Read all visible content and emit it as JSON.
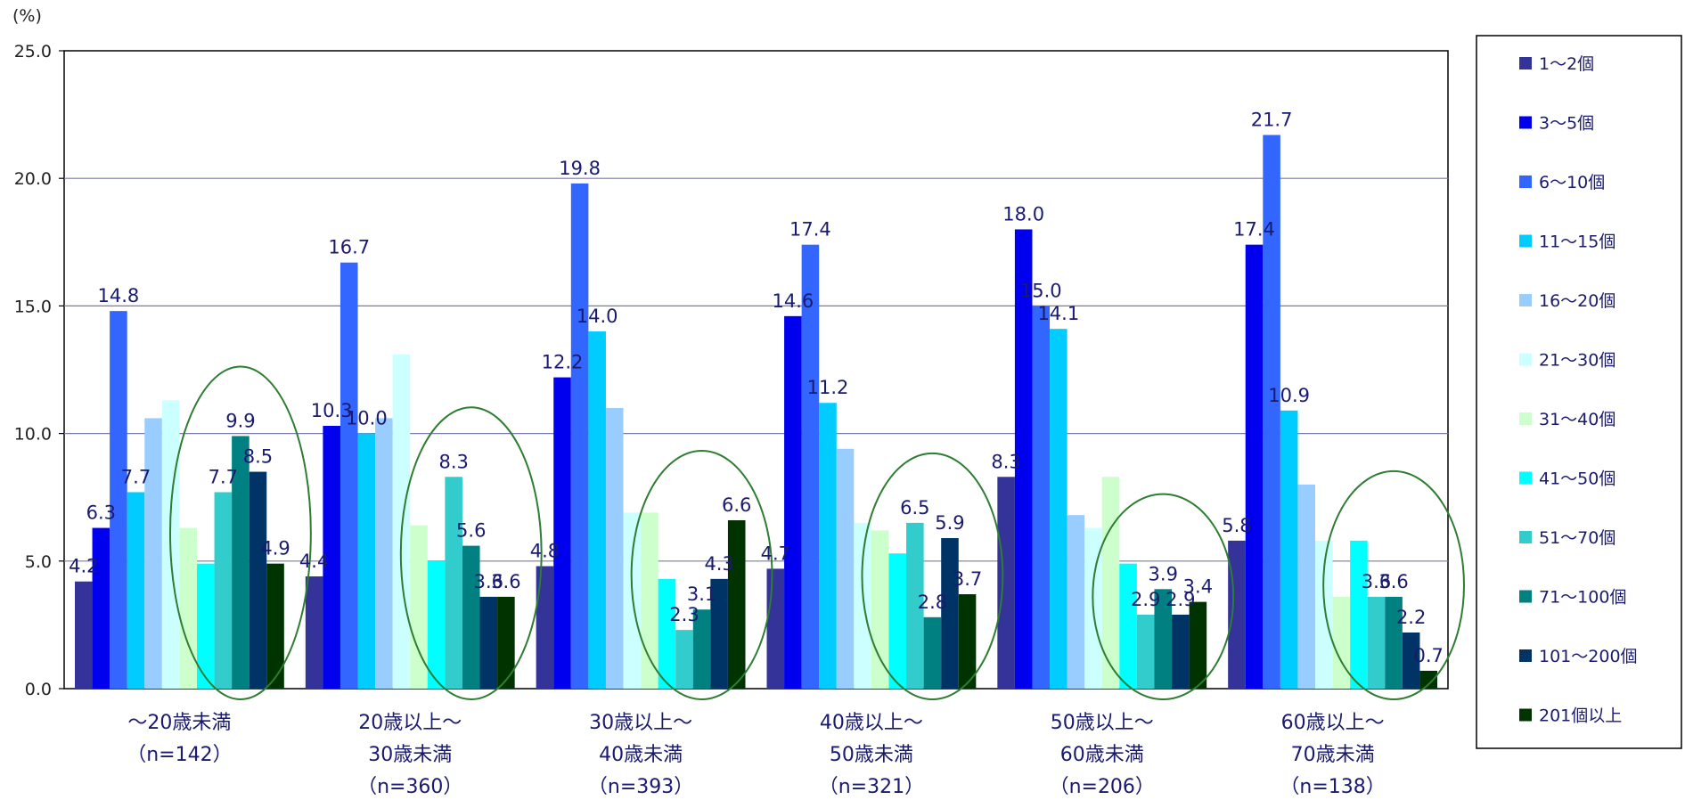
{
  "chart_data": {
    "type": "bar",
    "unit_label": "(%)",
    "ylim": [
      0,
      25
    ],
    "y_ticks": [
      "0.0",
      "5.0",
      "10.0",
      "15.0",
      "20.0",
      "25.0"
    ],
    "grid": true,
    "legend_position": "right",
    "categories": [
      [
        "～20歳未満",
        "（n=142）"
      ],
      [
        "20歳以上～",
        "30歳未満",
        "（n=360）"
      ],
      [
        "30歳以上～",
        "40歳未満",
        "（n=393）"
      ],
      [
        "40歳以上～",
        "50歳未満",
        "（n=321）"
      ],
      [
        "50歳以上～",
        "60歳未満",
        "（n=206）"
      ],
      [
        "60歳以上～",
        "70歳未満",
        "（n=138）"
      ]
    ],
    "series": [
      {
        "name": "1～2個",
        "color": "#333399",
        "values": [
          4.2,
          4.4,
          4.8,
          4.7,
          8.3,
          5.8
        ]
      },
      {
        "name": "3～5個",
        "color": "#0000ee",
        "values": [
          6.3,
          10.3,
          12.2,
          14.6,
          18.0,
          17.4
        ]
      },
      {
        "name": "6～10個",
        "color": "#3366ff",
        "values": [
          14.8,
          16.7,
          19.8,
          17.4,
          15.0,
          21.7
        ]
      },
      {
        "name": "11～15個",
        "color": "#00ccff",
        "values": [
          7.7,
          10.0,
          14.0,
          11.2,
          14.1,
          10.9
        ]
      },
      {
        "name": "16～20個",
        "color": "#99ccff",
        "values": [
          10.6,
          10.6,
          11.0,
          9.4,
          6.8,
          8.0
        ]
      },
      {
        "name": "21～30個",
        "color": "#ccffff",
        "values": [
          11.3,
          13.1,
          6.9,
          6.5,
          6.3,
          5.8
        ]
      },
      {
        "name": "31～40個",
        "color": "#ccffcc",
        "values": [
          6.3,
          6.4,
          6.9,
          6.2,
          8.3,
          3.6
        ]
      },
      {
        "name": "41～50個",
        "color": "#00ffff",
        "values": [
          4.9,
          5.0,
          4.3,
          5.3,
          4.9,
          5.8
        ]
      },
      {
        "name": "51～70個",
        "color": "#33cccc",
        "values": [
          7.7,
          8.3,
          2.3,
          6.5,
          2.9,
          3.6
        ]
      },
      {
        "name": "71～100個",
        "color": "#008080",
        "values": [
          9.9,
          5.6,
          3.1,
          2.8,
          3.9,
          3.6
        ]
      },
      {
        "name": "101～200個",
        "color": "#003366",
        "values": [
          8.5,
          3.6,
          4.3,
          5.9,
          2.9,
          2.2
        ]
      },
      {
        "name": "201個以上",
        "color": "#003300",
        "values": [
          4.9,
          3.6,
          6.6,
          3.7,
          3.4,
          0.7
        ]
      }
    ],
    "data_labels": [
      [
        {
          "s": 0,
          "text": "4.2"
        },
        {
          "s": 1,
          "text": "6.3"
        },
        {
          "s": 2,
          "text": "14.8"
        },
        {
          "s": 3,
          "text": "7.7"
        },
        {
          "s": 8,
          "text": "7.7"
        },
        {
          "s": 9,
          "text": "9.9"
        },
        {
          "s": 10,
          "text": "8.5"
        },
        {
          "s": 11,
          "text": "4.9"
        }
      ],
      [
        {
          "s": 0,
          "text": "4.4"
        },
        {
          "s": 1,
          "text": "10.3"
        },
        {
          "s": 2,
          "text": "16.7"
        },
        {
          "s": 3,
          "text": "10.0"
        },
        {
          "s": 8,
          "text": "8.3"
        },
        {
          "s": 9,
          "text": "5.6"
        },
        {
          "s": 10,
          "text": "3.6"
        },
        {
          "s": 11,
          "text": "3.6"
        }
      ],
      [
        {
          "s": 0,
          "text": "4.8"
        },
        {
          "s": 1,
          "text": "12.2"
        },
        {
          "s": 2,
          "text": "19.8"
        },
        {
          "s": 3,
          "text": "14.0"
        },
        {
          "s": 8,
          "text": "2.3"
        },
        {
          "s": 9,
          "text": "3.1"
        },
        {
          "s": 10,
          "text": "4.3"
        },
        {
          "s": 11,
          "text": "6.6"
        }
      ],
      [
        {
          "s": 0,
          "text": "4.7"
        },
        {
          "s": 1,
          "text": "14.6"
        },
        {
          "s": 2,
          "text": "17.4"
        },
        {
          "s": 3,
          "text": "11.2"
        },
        {
          "s": 8,
          "text": "6.5"
        },
        {
          "s": 9,
          "text": "2.8"
        },
        {
          "s": 10,
          "text": "5.9"
        },
        {
          "s": 11,
          "text": "3.7"
        }
      ],
      [
        {
          "s": 0,
          "text": "8.3"
        },
        {
          "s": 1,
          "text": "18.0"
        },
        {
          "s": 2,
          "text": "15.0"
        },
        {
          "s": 3,
          "text": "14.1"
        },
        {
          "s": 8,
          "text": "2.9"
        },
        {
          "s": 9,
          "text": "3.9"
        },
        {
          "s": 10,
          "text": "2.9"
        },
        {
          "s": 11,
          "text": "3.4"
        }
      ],
      [
        {
          "s": 0,
          "text": "5.8"
        },
        {
          "s": 1,
          "text": "17.4"
        },
        {
          "s": 2,
          "text": "21.7"
        },
        {
          "s": 3,
          "text": "10.9"
        },
        {
          "s": 8,
          "text": "3.6"
        },
        {
          "s": 9,
          "text": "3.6"
        },
        {
          "s": 10,
          "text": "2.2"
        },
        {
          "s": 11,
          "text": "0.7"
        }
      ]
    ],
    "highlight_ellipse_color": "#2e7d32"
  }
}
